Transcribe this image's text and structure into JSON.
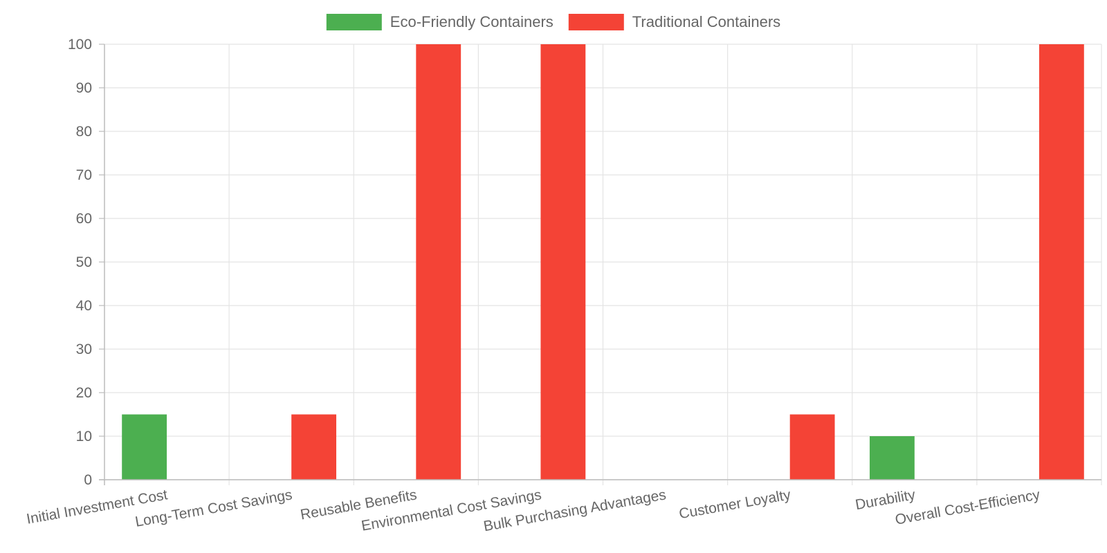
{
  "chart_data": {
    "type": "bar",
    "categories": [
      "Initial Investment Cost",
      "Long-Term Cost Savings",
      "Reusable Benefits",
      "Environmental Cost Savings",
      "Bulk Purchasing Advantages",
      "Customer Loyalty",
      "Durability",
      "Overall Cost-Efficiency"
    ],
    "series": [
      {
        "name": "Eco-Friendly Containers",
        "color": "#4caf50",
        "values": [
          15,
          0,
          0,
          0,
          0,
          0,
          10,
          0
        ]
      },
      {
        "name": "Traditional Containers",
        "color": "#f44336",
        "values": [
          0,
          15,
          100,
          100,
          0,
          15,
          0,
          100
        ]
      }
    ],
    "ylim": [
      0,
      100
    ],
    "yticks": [
      0,
      10,
      20,
      30,
      40,
      50,
      60,
      70,
      80,
      90,
      100
    ],
    "grid": true,
    "legend_position": "top"
  }
}
